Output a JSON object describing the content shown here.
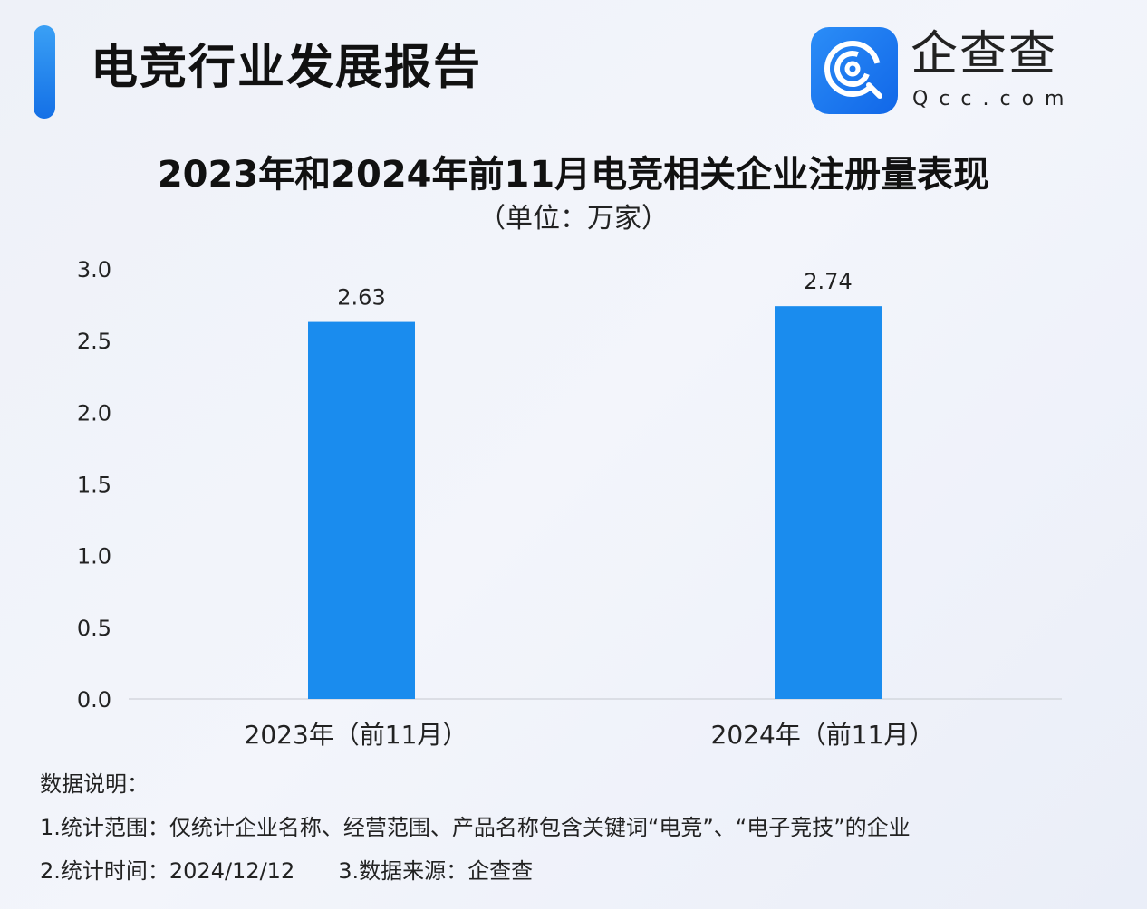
{
  "header": {
    "title": "电竞行业发展报告",
    "accent_color": "#1a7ff0"
  },
  "logo": {
    "name": "企查查",
    "domain": "Qcc.com"
  },
  "chart_data": {
    "type": "bar",
    "title": "2023年和2024年前11月电竞相关企业注册量表现",
    "subtitle": "（单位：万家）",
    "categories": [
      "2023年（前11月）",
      "2024年（前11月）"
    ],
    "values": [
      2.63,
      2.74
    ],
    "data_labels": [
      "2.63",
      "2.74"
    ],
    "ylim": [
      0,
      3.0
    ],
    "yticks": [
      "0.0",
      "0.5",
      "1.0",
      "1.5",
      "2.0",
      "2.5",
      "3.0"
    ],
    "grid": false,
    "bar_color": "#1a8cee"
  },
  "notes": {
    "heading": "数据说明：",
    "line1": "1.统计范围：仅统计企业名称、经营范围、产品名称包含关键词“电竞”、“电子竞技”的企业",
    "line2a": "2.统计时间：2024/12/12",
    "line2b": "3.数据来源：企查查"
  }
}
